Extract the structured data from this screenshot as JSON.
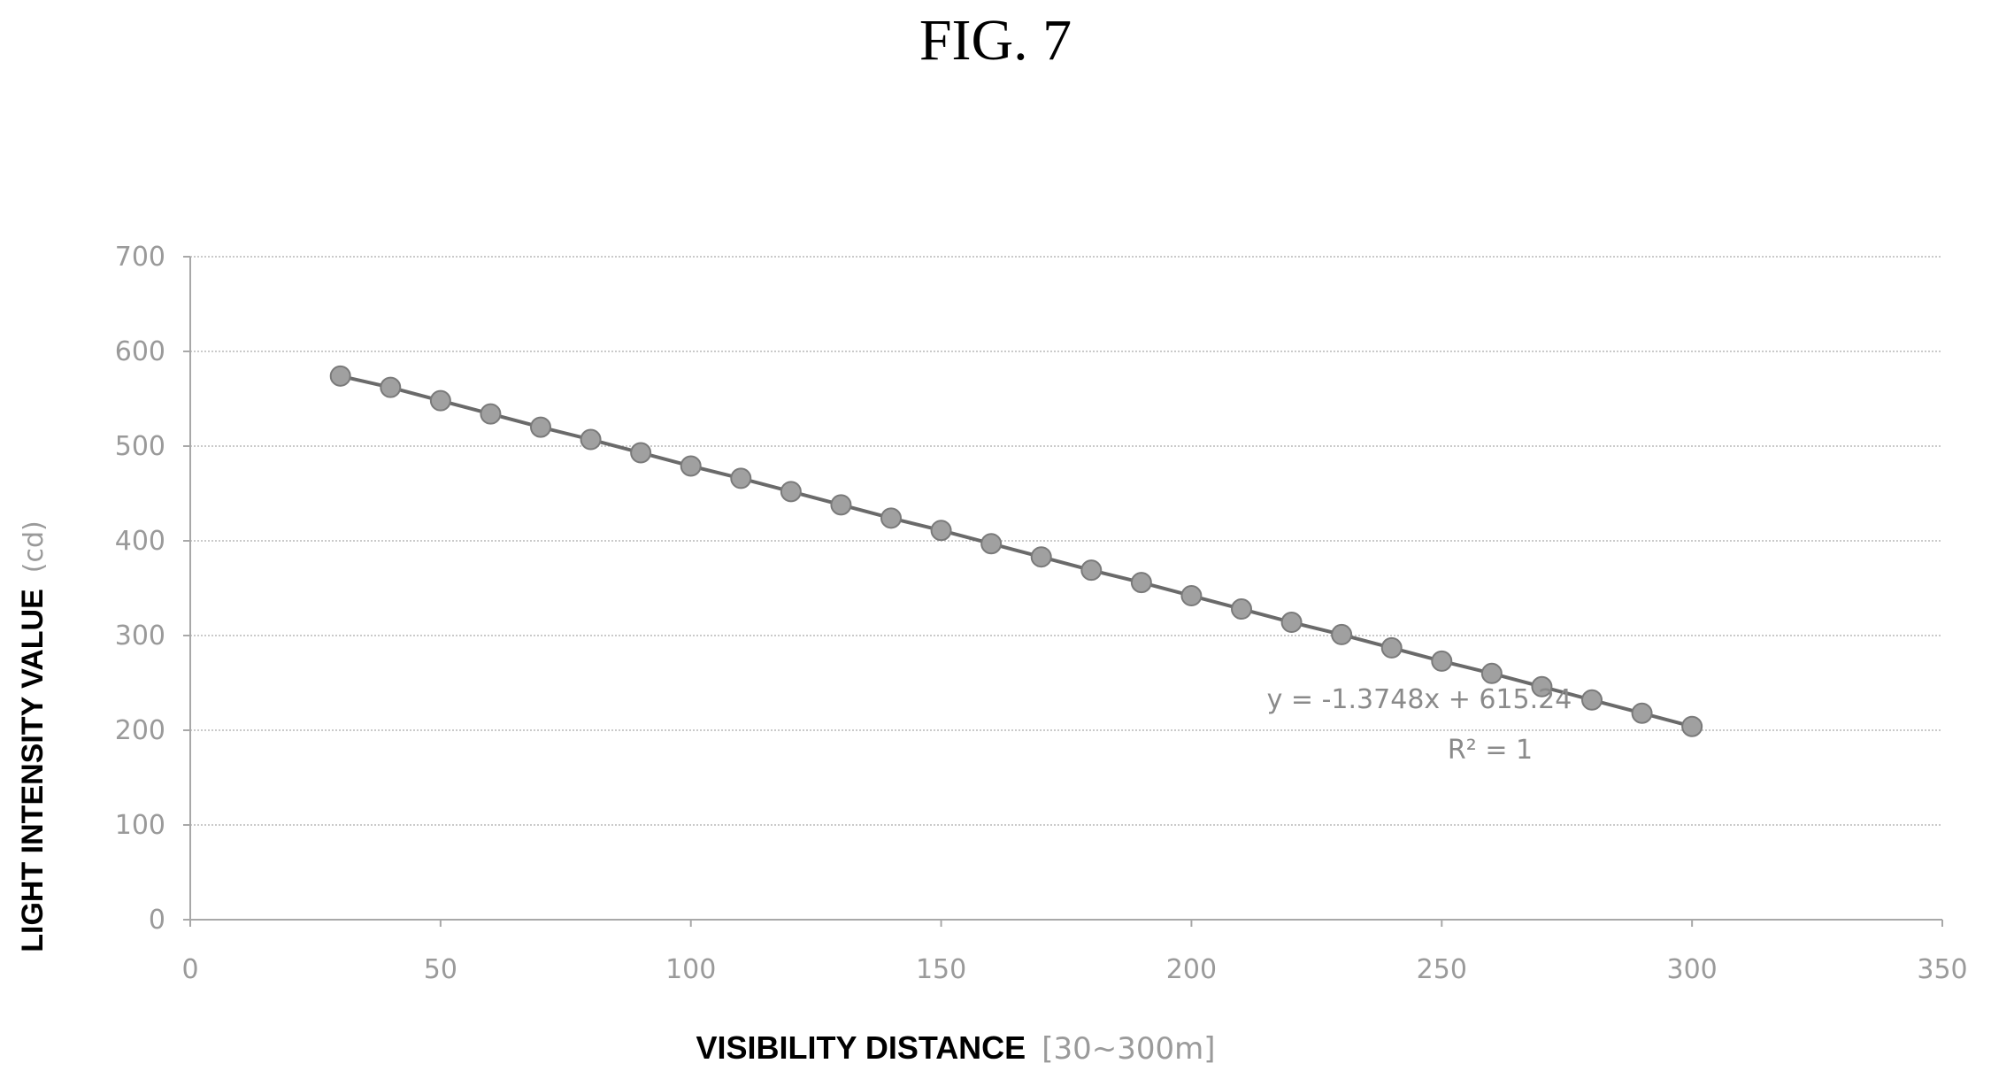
{
  "figure": {
    "title": "FIG. 7"
  },
  "chart_data": {
    "type": "scatter",
    "xlabel": "VISIBILITY DISTANCE",
    "xlabel_unit": "[30~300m]",
    "ylabel": "LIGHT INTENSITY VALUE",
    "ylabel_unit": "(cd)",
    "xlim": [
      0,
      350
    ],
    "ylim": [
      0,
      700
    ],
    "x_ticks": [
      "0",
      "50",
      "100",
      "150",
      "200",
      "250",
      "300",
      "350"
    ],
    "y_ticks": [
      "0",
      "100",
      "200",
      "300",
      "400",
      "500",
      "600",
      "700"
    ],
    "grid": "horizontal",
    "series": [
      {
        "x": [
          30,
          40,
          50,
          60,
          70,
          80,
          90,
          100,
          110,
          120,
          130,
          140,
          150,
          160,
          170,
          180,
          190,
          200,
          210,
          220,
          230,
          240,
          250,
          260,
          270,
          280,
          290,
          300
        ],
        "y": [
          574,
          562,
          548,
          534,
          520,
          507,
          493,
          479,
          466,
          452,
          438,
          424,
          411,
          397,
          383,
          369,
          356,
          342,
          328,
          314,
          301,
          287,
          273,
          260,
          246,
          232,
          218,
          204
        ],
        "trendline": true
      }
    ],
    "annotations": {
      "equation": "y = -1.3748x + 615.24",
      "r_squared": "R² = 1"
    },
    "colors": {
      "marker": "#a0a0a0",
      "line": "#6a6a6a",
      "grid": "#b8b8b8",
      "axis": "#a8a8a8"
    }
  }
}
